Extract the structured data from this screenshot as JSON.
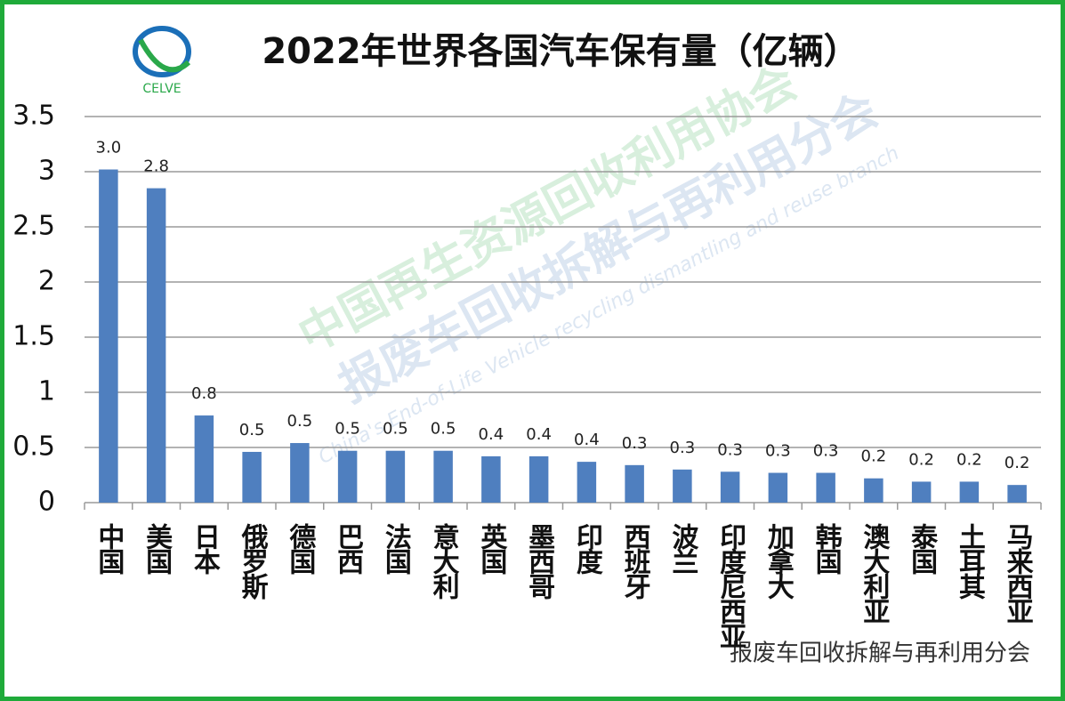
{
  "chart_data": {
    "type": "bar",
    "title": "2022年世界各国汽车保有量（亿辆）",
    "logo_text": "CELVE",
    "watermark": [
      "中国再生资源回收利用协会",
      "报废车回收拆解与再利用分会",
      "China's End-of-Life Vehicle recycling dismantling and reuse branch"
    ],
    "footer": "报废车回收拆解与再利用分会",
    "categories": [
      "中国",
      "美国",
      "日本",
      "俄罗斯",
      "德国",
      "巴西",
      "法国",
      "意大利",
      "英国",
      "墨西哥",
      "印度",
      "西班牙",
      "波兰",
      "印度尼西亚",
      "加拿大",
      "韩国",
      "澳大利亚",
      "泰国",
      "土耳其",
      "马来西亚"
    ],
    "values": [
      3.02,
      2.85,
      0.79,
      0.46,
      0.54,
      0.47,
      0.47,
      0.47,
      0.42,
      0.42,
      0.37,
      0.34,
      0.3,
      0.28,
      0.27,
      0.27,
      0.22,
      0.19,
      0.19,
      0.16
    ],
    "value_labels": [
      "3.0",
      "2.8",
      "0.8",
      "0.5",
      "0.5",
      "0.5",
      "0.5",
      "0.5",
      "0.4",
      "0.4",
      "0.4",
      "0.3",
      "0.3",
      "0.3",
      "0.3",
      "0.3",
      "0.2",
      "0.2",
      "0.2",
      "0.2"
    ],
    "color": "#4f7fbf",
    "ylim": [
      0,
      3.5
    ],
    "yticks": [
      0,
      0.5,
      1,
      1.5,
      2,
      2.5,
      3,
      3.5
    ],
    "grid": true
  }
}
